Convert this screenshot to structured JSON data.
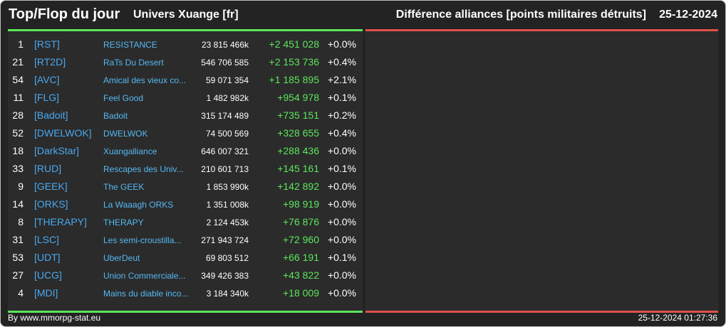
{
  "header": {
    "title": "Top/Flop du jour",
    "universe": "Univers Xuange [fr]",
    "metric": "Différence alliances [points militaires détruits]",
    "date": "25-12-2024"
  },
  "colors": {
    "background": "#232323",
    "panel": "#2b2b2b",
    "top_accent": "#5ce65c",
    "flop_accent": "#e0504a",
    "link": "#4aa8ef"
  },
  "top_rows": [
    {
      "rank": "1",
      "tag": "[RST]",
      "name": "RESISTANCE",
      "total": "23 815 466k",
      "diff": "+2 451 028",
      "pct": "+0.0%"
    },
    {
      "rank": "21",
      "tag": "[RT2D]",
      "name": "RaTs Du Desert",
      "total": "546 706 585",
      "diff": "+2 153 736",
      "pct": "+0.4%"
    },
    {
      "rank": "54",
      "tag": "[AVC]",
      "name": "Amical des vieux co...",
      "total": "59 071 354",
      "diff": "+1 185 895",
      "pct": "+2.1%"
    },
    {
      "rank": "11",
      "tag": "[FLG]",
      "name": "Feel Good",
      "total": "1 482 982k",
      "diff": "+954 978",
      "pct": "+0.1%"
    },
    {
      "rank": "28",
      "tag": "[Badoit]",
      "name": "Badoit",
      "total": "315 174 489",
      "diff": "+735 151",
      "pct": "+0.2%"
    },
    {
      "rank": "52",
      "tag": "[DWELWOK]",
      "name": "DWELWOK",
      "total": "74 500 569",
      "diff": "+328 655",
      "pct": "+0.4%"
    },
    {
      "rank": "18",
      "tag": "[DarkStar]",
      "name": "Xuangalliance",
      "total": "646 007 321",
      "diff": "+288 436",
      "pct": "+0.0%"
    },
    {
      "rank": "33",
      "tag": "[RUD]",
      "name": "Rescapes des Univ...",
      "total": "210 601 713",
      "diff": "+145 161",
      "pct": "+0.1%"
    },
    {
      "rank": "9",
      "tag": "[GEEK]",
      "name": "The GEEK",
      "total": "1 853 990k",
      "diff": "+142 892",
      "pct": "+0.0%"
    },
    {
      "rank": "14",
      "tag": "[ORKS]",
      "name": "La Waaagh ORKS",
      "total": "1 351 008k",
      "diff": "+98 919",
      "pct": "+0.0%"
    },
    {
      "rank": "8",
      "tag": "[THERAPY]",
      "name": "THERAPY",
      "total": "2 124 453k",
      "diff": "+76 876",
      "pct": "+0.0%"
    },
    {
      "rank": "31",
      "tag": "[LSC]",
      "name": "Les semi-croustilla...",
      "total": "271 943 724",
      "diff": "+72 960",
      "pct": "+0.0%"
    },
    {
      "rank": "53",
      "tag": "[UDT]",
      "name": "UberDeut",
      "total": "69 803 512",
      "diff": "+66 191",
      "pct": "+0.1%"
    },
    {
      "rank": "27",
      "tag": "[UCG]",
      "name": "Union Commerciale...",
      "total": "349 426 383",
      "diff": "+43 822",
      "pct": "+0.0%"
    },
    {
      "rank": "4",
      "tag": "[MDI]",
      "name": "Mains du diable inco...",
      "total": "3 184 340k",
      "diff": "+18 009",
      "pct": "+0.0%"
    }
  ],
  "footer": {
    "source": "By www.mmorpg-stat.eu",
    "generated": "25-12-2024 01:27:36"
  }
}
